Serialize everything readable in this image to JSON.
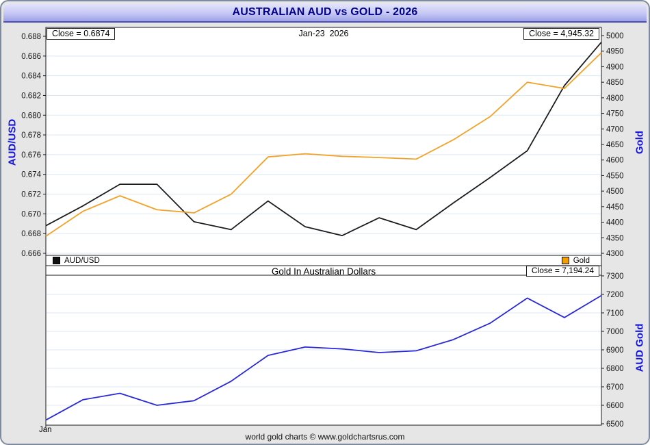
{
  "title": "AUSTRALIAN AUD vs GOLD - 2026",
  "footer": "world gold charts © www.goldchartsrus.com",
  "top_panel": {
    "close_left": "Close = 0.6874",
    "date_label": "Jan-23  2026",
    "close_right": "Close = 4,945.32",
    "left_axis_title": "AUD/USD",
    "right_axis_title": "Gold",
    "legend": [
      {
        "label": "AUD/USD",
        "color": "#111111"
      },
      {
        "label": "Gold",
        "color": "#f0a000"
      }
    ]
  },
  "bottom_panel": {
    "title": "Gold In Australian Dollars",
    "close_right": "Close = 7,194.24",
    "right_axis_title": "AUD Gold",
    "x_tick_label": "Jan"
  },
  "colors": {
    "aud_line": "#1c1c1c",
    "gold_line": "#f2a227",
    "aud_gold_line": "#2929d8",
    "axis_title_blue": "#1414e0",
    "title_navy": "#00008b",
    "gridline": "#dde8f3"
  },
  "chart_data": [
    {
      "type": "line",
      "panel": "top",
      "x_month": "Jan",
      "x_count": 16,
      "series": [
        {
          "name": "AUD/USD",
          "axis": "left",
          "color": "#1c1c1c",
          "values": [
            0.6688,
            0.6708,
            0.673,
            0.673,
            0.6692,
            0.6684,
            0.6713,
            0.6687,
            0.6678,
            0.6696,
            0.6684,
            0.6711,
            0.6737,
            0.6764,
            0.683,
            0.6874
          ]
        },
        {
          "name": "Gold",
          "axis": "right",
          "color": "#f2a227",
          "values": [
            4355,
            4435,
            4485,
            4440,
            4430,
            4490,
            4610,
            4620,
            4612,
            4608,
            4603,
            4665,
            4740,
            4850,
            4830,
            4945.32
          ]
        }
      ],
      "left_axis": {
        "title": "AUD/USD",
        "max": 0.688,
        "min": 0.666,
        "decimals": 3,
        "ticks": [
          0.688,
          0.686,
          0.684,
          0.682,
          0.68,
          0.678,
          0.676,
          0.674,
          0.672,
          0.67,
          0.668,
          0.666
        ]
      },
      "right_axis": {
        "title": "Gold",
        "max": 5000,
        "min": 4300,
        "decimals": 0,
        "ticks": [
          5000,
          4950,
          4900,
          4850,
          4800,
          4750,
          4700,
          4650,
          4600,
          4550,
          4500,
          4450,
          4400,
          4350,
          4300
        ]
      },
      "closes": {
        "left": 0.6874,
        "right": 4945.32
      }
    },
    {
      "type": "line",
      "panel": "bottom",
      "title": "Gold In Australian Dollars",
      "x_month": "Jan",
      "x_count": 16,
      "series": [
        {
          "name": "AUD Gold",
          "axis": "right",
          "color": "#2929d8",
          "values": [
            6520,
            6630,
            6665,
            6600,
            6625,
            6730,
            6870,
            6915,
            6905,
            6885,
            6895,
            6955,
            7045,
            7180,
            7075,
            7194.24
          ]
        }
      ],
      "right_axis": {
        "title": "AUD Gold",
        "max": 7300,
        "min": 6500,
        "decimals": 0,
        "ticks": [
          7300,
          7200,
          7100,
          7000,
          6900,
          6800,
          6700,
          6600,
          6500
        ]
      },
      "closes": {
        "right": 7194.24
      }
    }
  ]
}
